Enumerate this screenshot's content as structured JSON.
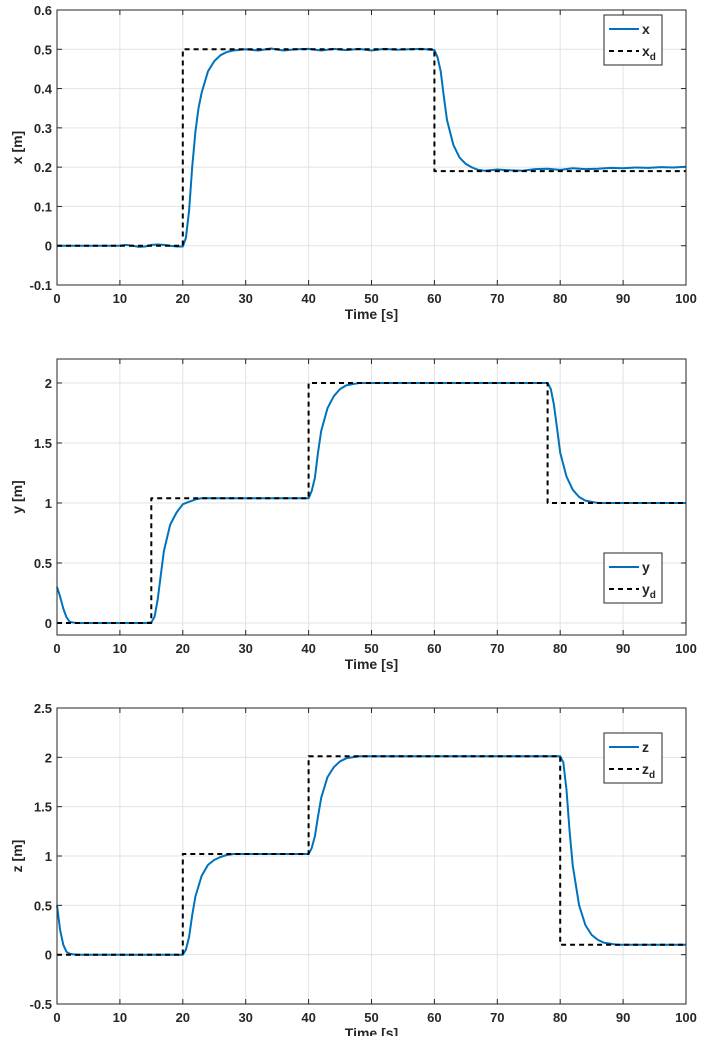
{
  "chart_data": [
    {
      "type": "line",
      "xlabel": "Time [s]",
      "ylabel": "x [m]",
      "xlim": [
        0,
        100
      ],
      "ylim": [
        -0.1,
        0.6
      ],
      "xticks": [
        "0",
        "10",
        "20",
        "30",
        "40",
        "50",
        "60",
        "70",
        "80",
        "90",
        "100"
      ],
      "yticks": [
        "-0.1",
        "0",
        "0.1",
        "0.2",
        "0.3",
        "0.4",
        "0.5",
        "0.6"
      ],
      "grid": true,
      "legend_position": "top-right",
      "series": [
        {
          "name": "x",
          "name_sub": "",
          "style": "solid",
          "color": "#0072BD",
          "x": [
            0,
            5,
            10,
            11,
            12,
            13,
            14,
            15,
            16,
            17,
            18,
            19,
            20,
            20.5,
            21,
            21.5,
            22,
            22.5,
            23,
            24,
            25,
            26,
            27,
            28,
            30,
            32,
            34,
            36,
            38,
            40,
            42,
            44,
            46,
            48,
            50,
            52,
            54,
            56,
            58,
            60,
            60.5,
            61,
            61.5,
            62,
            63,
            64,
            65,
            66,
            67,
            68,
            70,
            72,
            74,
            76,
            78,
            80,
            82,
            84,
            86,
            88,
            90,
            92,
            94,
            96,
            98,
            100
          ],
          "y": [
            0,
            0,
            0,
            0.002,
            0,
            -0.003,
            -0.002,
            0.002,
            0.003,
            0.002,
            0,
            -0.002,
            -0.002,
            0.02,
            0.09,
            0.2,
            0.29,
            0.35,
            0.39,
            0.444,
            0.47,
            0.485,
            0.493,
            0.497,
            0.5,
            0.497,
            0.502,
            0.497,
            0.5,
            0.501,
            0.497,
            0.501,
            0.498,
            0.501,
            0.497,
            0.501,
            0.499,
            0.5,
            0.501,
            0.498,
            0.48,
            0.444,
            0.38,
            0.32,
            0.257,
            0.224,
            0.208,
            0.199,
            0.193,
            0.191,
            0.194,
            0.192,
            0.191,
            0.195,
            0.196,
            0.193,
            0.197,
            0.195,
            0.196,
            0.198,
            0.197,
            0.199,
            0.198,
            0.2,
            0.199,
            0.201
          ]
        },
        {
          "name": "x",
          "name_sub": "d",
          "style": "dashed",
          "color": "#000000",
          "x": [
            0,
            20,
            20,
            60,
            60,
            100
          ],
          "y": [
            0,
            0,
            0.5,
            0.5,
            0.19,
            0.19
          ]
        }
      ]
    },
    {
      "type": "line",
      "xlabel": "Time [s]",
      "ylabel": "y [m]",
      "xlim": [
        0,
        100
      ],
      "ylim": [
        -0.1,
        2.2
      ],
      "xticks": [
        "0",
        "10",
        "20",
        "30",
        "40",
        "50",
        "60",
        "70",
        "80",
        "90",
        "100"
      ],
      "yticks": [
        "0",
        "0.5",
        "1",
        "1.5",
        "2"
      ],
      "ytick_values": [
        0,
        0.5,
        1,
        1.5,
        2
      ],
      "grid": true,
      "legend_position": "right-lower",
      "series": [
        {
          "name": "y",
          "name_sub": "",
          "style": "solid",
          "color": "#0072BD",
          "x": [
            0,
            0.5,
            1,
            1.5,
            2,
            3,
            5,
            10,
            14,
            15,
            15.5,
            16,
            16.5,
            17,
            18,
            19,
            20,
            21,
            22,
            23,
            30,
            40,
            40.5,
            41,
            41.5,
            42,
            43,
            44,
            45,
            46,
            47,
            48,
            60,
            78,
            78.5,
            79,
            79.5,
            80,
            81,
            82,
            83,
            84,
            85,
            86,
            90,
            100
          ],
          "y": [
            0.3,
            0.22,
            0.12,
            0.05,
            0.01,
            0,
            0,
            0,
            0,
            0.005,
            0.05,
            0.19,
            0.4,
            0.6,
            0.82,
            0.92,
            0.99,
            1.01,
            1.03,
            1.04,
            1.04,
            1.04,
            1.1,
            1.21,
            1.42,
            1.6,
            1.79,
            1.89,
            1.95,
            1.98,
            1.99,
            2,
            2,
            2,
            1.95,
            1.82,
            1.62,
            1.42,
            1.22,
            1.11,
            1.05,
            1.02,
            1.01,
            1,
            1,
            1
          ]
        },
        {
          "name": "y",
          "name_sub": "d",
          "style": "dashed",
          "color": "#000000",
          "x": [
            0,
            15,
            15,
            40,
            40,
            78,
            78,
            100
          ],
          "y": [
            0,
            0,
            1.04,
            1.04,
            2,
            2,
            1,
            1
          ]
        }
      ]
    },
    {
      "type": "line",
      "xlabel": "Time [s]",
      "ylabel": "z [m]",
      "xlim": [
        0,
        100
      ],
      "ylim": [
        -0.5,
        2.5
      ],
      "xticks": [
        "0",
        "10",
        "20",
        "30",
        "40",
        "50",
        "60",
        "70",
        "80",
        "90",
        "100"
      ],
      "yticks": [
        "-0.5",
        "0",
        "0.5",
        "1",
        "1.5",
        "2",
        "2.5"
      ],
      "grid": true,
      "legend_position": "top-right",
      "series": [
        {
          "name": "z",
          "name_sub": "",
          "style": "solid",
          "color": "#0072BD",
          "x": [
            0,
            0.5,
            1,
            1.5,
            2,
            3,
            10,
            20,
            20.5,
            21,
            21.5,
            22,
            23,
            24,
            25,
            26,
            27,
            28,
            35,
            40,
            40.5,
            41,
            41.5,
            42,
            43,
            44,
            45,
            46,
            47,
            48,
            60,
            80,
            80.5,
            81,
            81.5,
            82,
            83,
            84,
            85,
            86,
            87,
            88,
            89,
            100
          ],
          "y": [
            0.5,
            0.25,
            0.1,
            0.03,
            0.01,
            0,
            0,
            0,
            0.05,
            0.18,
            0.4,
            0.59,
            0.8,
            0.91,
            0.96,
            0.99,
            1.01,
            1.02,
            1.02,
            1.02,
            1.08,
            1.2,
            1.4,
            1.59,
            1.8,
            1.9,
            1.96,
            1.99,
            2,
            2.01,
            2.01,
            2.01,
            1.95,
            1.67,
            1.25,
            0.9,
            0.5,
            0.3,
            0.2,
            0.15,
            0.12,
            0.11,
            0.1,
            0.1
          ]
        },
        {
          "name": "z",
          "name_sub": "d",
          "style": "dashed",
          "color": "#000000",
          "x": [
            0,
            20,
            20,
            40,
            40,
            80,
            80,
            100
          ],
          "y": [
            0,
            0,
            1.02,
            1.02,
            2.01,
            2.01,
            0.1,
            0.1
          ]
        }
      ]
    }
  ]
}
